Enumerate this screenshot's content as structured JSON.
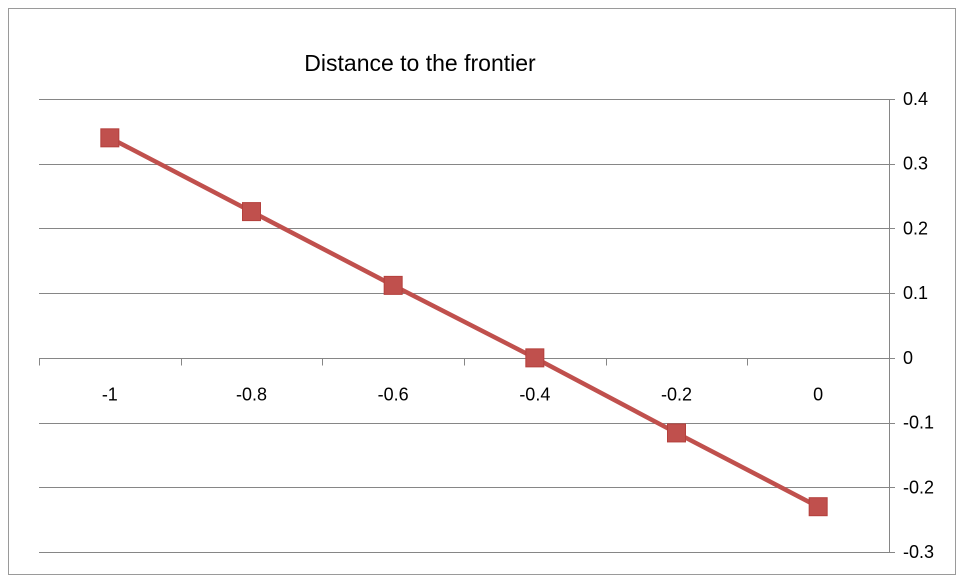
{
  "chart_data": {
    "type": "line",
    "title": "Distance to the frontier",
    "xlabel": "",
    "ylabel": "",
    "x": [
      -1,
      -0.8,
      -0.6,
      -0.4,
      -0.2,
      0
    ],
    "x_tick_labels": [
      "-1",
      "-0.8",
      "-0.6",
      "-0.4",
      "-0.2",
      "0"
    ],
    "y_tick_values": [
      0.4,
      0.3,
      0.2,
      0.1,
      0,
      -0.1,
      -0.2,
      -0.3
    ],
    "y_tick_labels": [
      "0.4",
      "0.3",
      "0.2",
      "0.1",
      "0",
      "-0.1",
      "-0.2",
      "-0.3"
    ],
    "ylim": [
      -0.3,
      0.4
    ],
    "y_axis_position": "right",
    "grid": "horizontal",
    "legend": "none",
    "series": [
      {
        "values": [
          0.34,
          0.226,
          0.112,
          0.0,
          -0.116,
          -0.23
        ],
        "color": "#C0504D",
        "marker": "square"
      }
    ]
  }
}
